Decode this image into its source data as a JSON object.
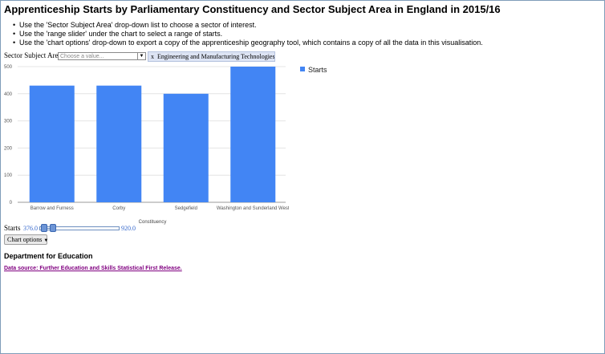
{
  "page": {
    "title": "Apprenticeship Starts by Parliamentary Constituency and Sector Subject Area in England in 2015/16",
    "instructions": [
      "Use the 'Sector Subject Area' drop-down list to choose a sector of interest.",
      "Use the 'range slider' under the chart to select a range of starts.",
      "Use the 'chart options' drop-down to export a copy of the apprenticeship geography tool, which contains a copy of all the data in this visualisation."
    ]
  },
  "filter": {
    "label": "Sector Subject Area",
    "placeholder": "Choose a value...",
    "selected_chip": {
      "remove_glyph": "x",
      "label": "Engineering and Manufacturing Technologies"
    }
  },
  "chart_data": {
    "type": "bar",
    "categories": [
      "Barrow and Furness",
      "Corby",
      "Sedgefield",
      "Washington and Sunderland West"
    ],
    "series": [
      {
        "name": "Starts",
        "values": [
          430,
          430,
          400,
          500
        ],
        "color": "#4285f4"
      }
    ],
    "xlabel": "Constituency",
    "ylabel": "",
    "ylim": [
      0,
      500
    ],
    "yticks": [
      0,
      100,
      200,
      300,
      400,
      500
    ],
    "grid": true,
    "legend": "right"
  },
  "range_slider": {
    "label": "Starts",
    "min_text": "376.0",
    "max_text": "920.0",
    "low_fraction": 0.06,
    "high_fraction": 0.17
  },
  "chart_options": {
    "label": "Chart options",
    "caret": "▼"
  },
  "footer": {
    "department": "Department for Education",
    "source_link": "Data source: Further Education and Skills Statistical First Release."
  },
  "colors": {
    "bar": "#4285f4",
    "slider": "#6d95d6",
    "link_visited": "#800080",
    "range_value": "#3366cc"
  }
}
